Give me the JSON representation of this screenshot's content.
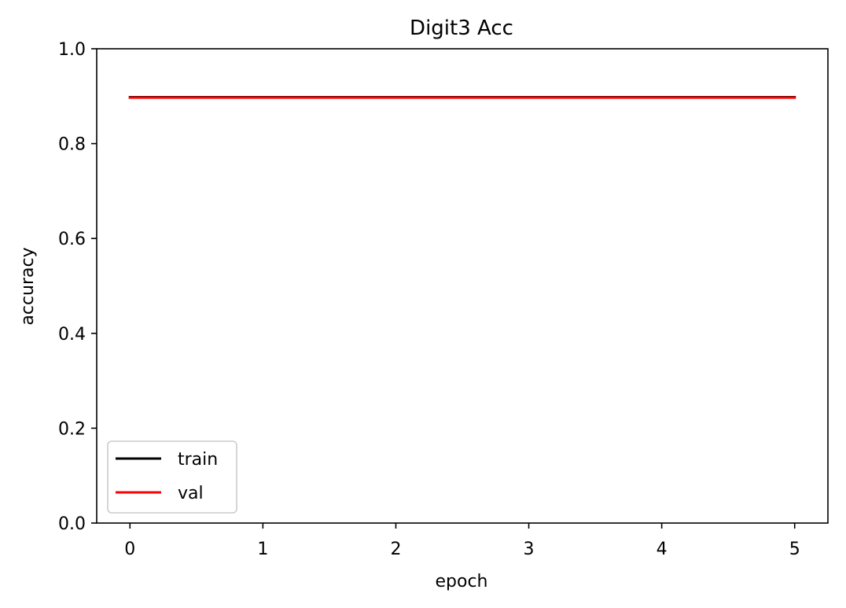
{
  "chart_data": {
    "type": "line",
    "title": "Digit3 Acc",
    "xlabel": "epoch",
    "ylabel": "accuracy",
    "xlim": [
      -0.25,
      5.25
    ],
    "ylim": [
      0.0,
      1.0
    ],
    "x_ticks": [
      "0",
      "1",
      "2",
      "3",
      "4",
      "5"
    ],
    "y_ticks": [
      "0.0",
      "0.2",
      "0.4",
      "0.6",
      "0.8",
      "1.0"
    ],
    "x": [
      0,
      1,
      2,
      3,
      4,
      5
    ],
    "series": [
      {
        "name": "train",
        "color": "#000000",
        "values": [
          0.898,
          0.898,
          0.898,
          0.898,
          0.898,
          0.898
        ]
      },
      {
        "name": "val",
        "color": "#ff0000",
        "values": [
          0.897,
          0.897,
          0.897,
          0.897,
          0.897,
          0.897
        ]
      }
    ],
    "grid": false,
    "legend_position": "lower-left"
  }
}
